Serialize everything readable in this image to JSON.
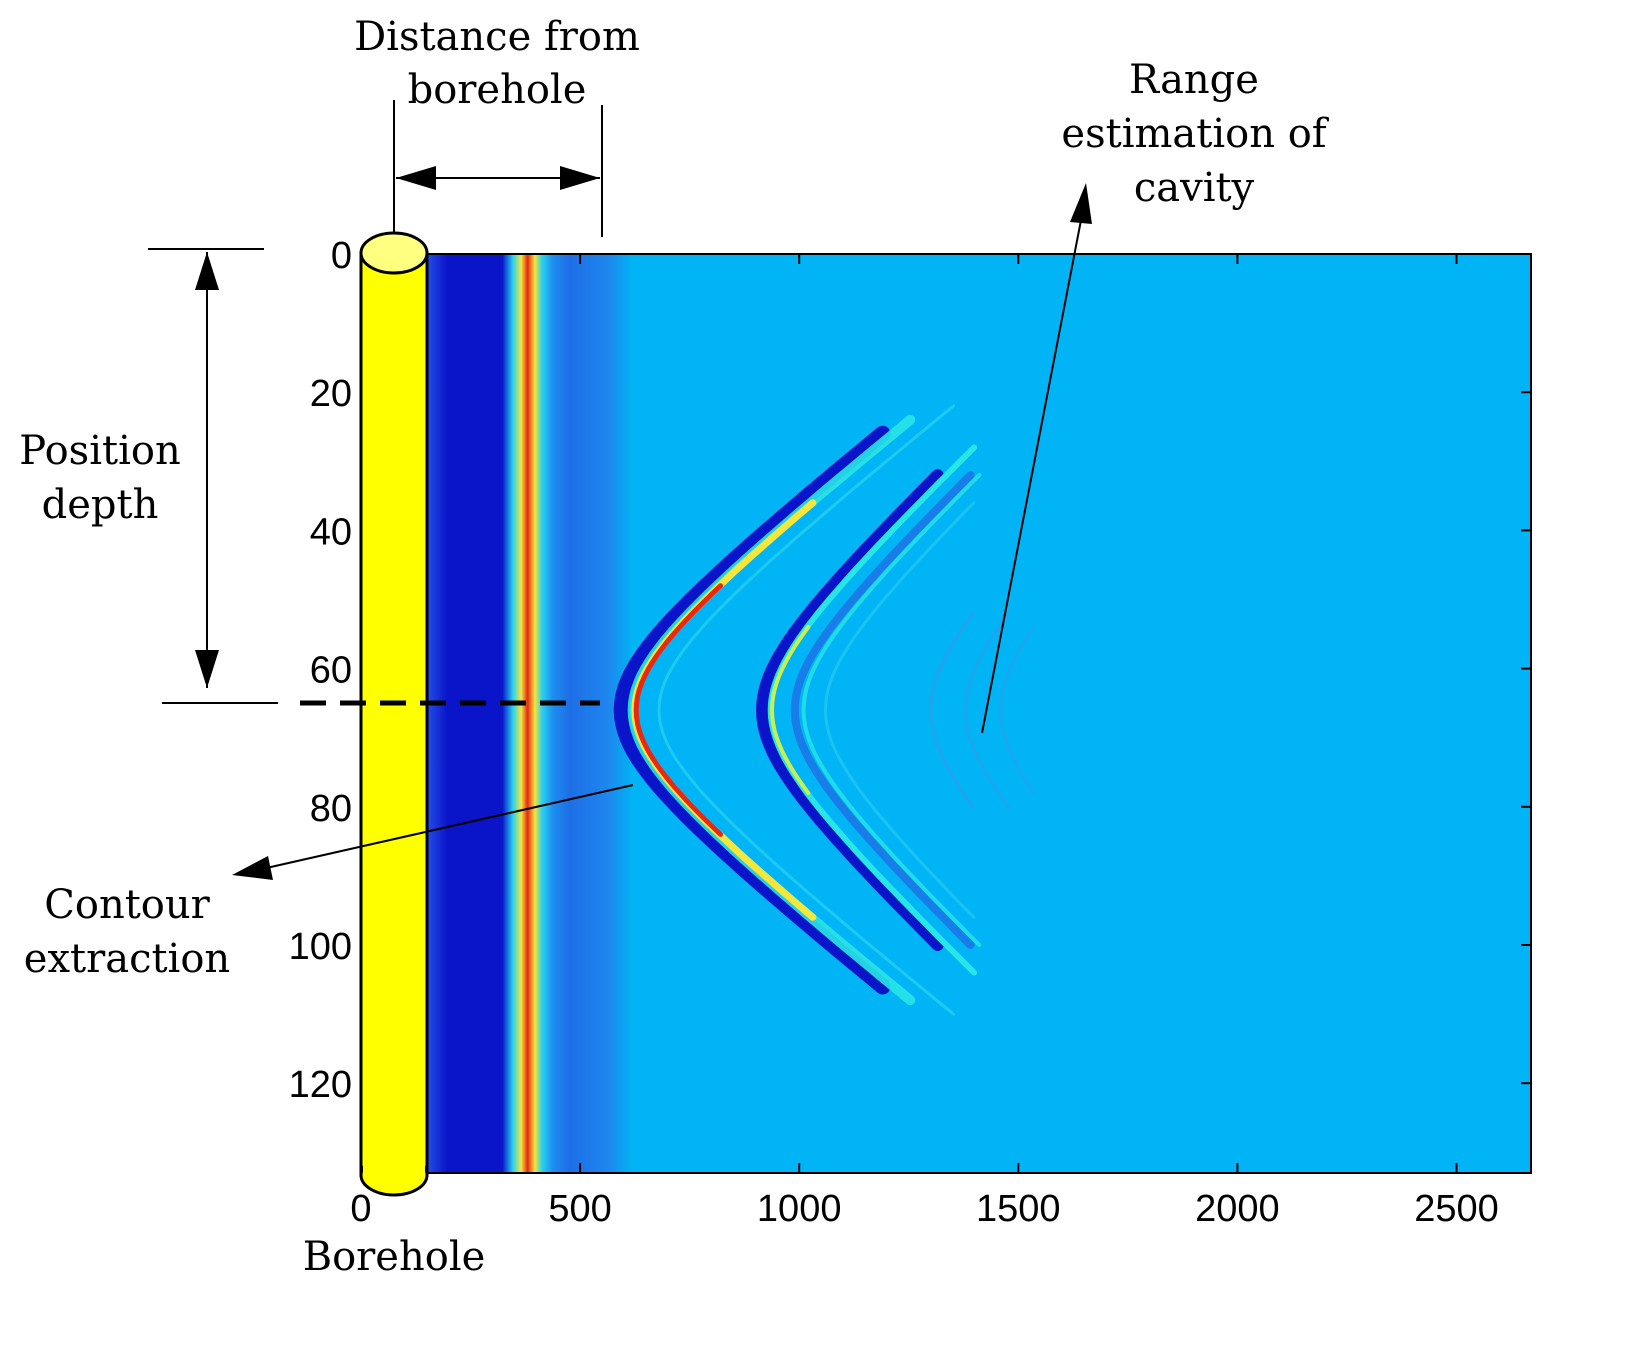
{
  "annotations": {
    "distance_line1": "Distance from",
    "distance_line2": "borehole",
    "range_line1": "Range",
    "range_line2": "estimation of",
    "range_line3": "cavity",
    "position_line1": "Position",
    "position_line2": "depth",
    "contour_line1": "Contour",
    "contour_line2": "extraction",
    "borehole_label": "Borehole"
  },
  "chart_data": {
    "type": "heatmap",
    "xlim": [
      0,
      2670
    ],
    "ylim": [
      0,
      133
    ],
    "x_inverted": false,
    "y_inverted": true,
    "x_ticks": [
      0,
      500,
      1000,
      1500,
      2000,
      2500
    ],
    "x_tick_labels": [
      "0",
      "500",
      "1000",
      "1500",
      "2000",
      "2500"
    ],
    "y_ticks": [
      0,
      20,
      40,
      60,
      80,
      100,
      120
    ],
    "y_tick_labels": [
      "0",
      "20",
      "40",
      "60",
      "80",
      "100",
      "120"
    ],
    "features": {
      "near_band_dark_x": [
        140,
        290
      ],
      "near_band_peak_x": 340,
      "cavity_apex_depth": 66,
      "primary_hyperbola_apex_x": 620,
      "secondary_hyperbola_apex_x": 930,
      "tertiary_hyperbola_apex_x": 1300,
      "range_estimation_point": [
        1400,
        69
      ]
    },
    "colors": {
      "background": "#00b4f5",
      "dark_blue": "#0a14c8",
      "mid_blue": "#1e6ee6",
      "red": "#e62814",
      "yellow": "#f5e63c",
      "cyan": "#28e6e6",
      "borehole_fill": "#ffff00"
    }
  }
}
